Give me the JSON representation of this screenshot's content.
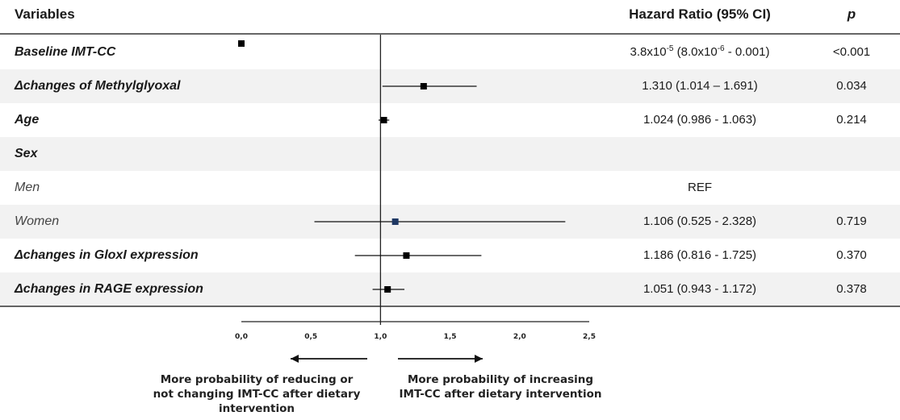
{
  "headers": {
    "variables": "Variables",
    "hazard_ratio": "Hazard Ratio (95% CI)",
    "p": "p"
  },
  "rows": [
    {
      "label": "Baseline IMT-CC",
      "style": "bold",
      "shade": false,
      "hr": null,
      "hr_parts": [
        "3.8x10",
        "-5",
        " (8.0x10",
        "-6",
        " - 0.001)"
      ],
      "p": "<0.001"
    },
    {
      "label": "Δchanges of Methylglyoxal",
      "style": "bold",
      "shade": true,
      "hr": "1.310 (1.014 – 1.691)",
      "p": "0.034"
    },
    {
      "label": "Age",
      "style": "bold",
      "shade": false,
      "hr": "1.024 (0.986 - 1.063)",
      "p": "0.214"
    },
    {
      "label": "Sex",
      "style": "bold",
      "shade": true,
      "hr": "",
      "p": ""
    },
    {
      "label": "Men",
      "style": "ital",
      "shade": false,
      "hr": "REF",
      "p": ""
    },
    {
      "label": "Women",
      "style": "ital",
      "shade": true,
      "hr": "1.106 (0.525 - 2.328)",
      "p": "0.719"
    },
    {
      "label": "Δchanges in GloxI expression",
      "style": "bold",
      "shade": false,
      "hr": "1.186 (0.816 - 1.725)",
      "p": "0.370"
    },
    {
      "label": "Δchanges in RAGE expression",
      "style": "bold",
      "shade": true,
      "hr": "1.051 (0.943 - 1.172)",
      "p": "0.378"
    }
  ],
  "chart_data": {
    "type": "forest",
    "xlim": [
      0,
      2.5
    ],
    "reference_line": 1.0,
    "ticks": [
      "0,0",
      "0,5",
      "1,0",
      "1,5",
      "2,0",
      "2,5"
    ],
    "tick_values": [
      0,
      0.5,
      1.0,
      1.5,
      2.0,
      2.5
    ],
    "points": [
      {
        "row": 0,
        "hr": 3.8e-05,
        "low": 8e-06,
        "high": 0.001
      },
      {
        "row": 1,
        "hr": 1.31,
        "low": 1.014,
        "high": 1.691
      },
      {
        "row": 2,
        "hr": 1.024,
        "low": 0.986,
        "high": 1.063
      },
      {
        "row": 5,
        "hr": 1.106,
        "low": 0.525,
        "high": 2.328
      },
      {
        "row": 6,
        "hr": 1.186,
        "low": 0.816,
        "high": 1.725
      },
      {
        "row": 7,
        "hr": 1.051,
        "low": 0.943,
        "high": 1.172
      }
    ],
    "marker_color": "#000000",
    "women_marker_color": "#1f3864"
  },
  "annotations": {
    "left": [
      "More probability of reducing or",
      "not changing IMT-CC after dietary",
      "intervention"
    ],
    "right": [
      "More probability of increasing",
      "IMT-CC after dietary intervention"
    ]
  }
}
